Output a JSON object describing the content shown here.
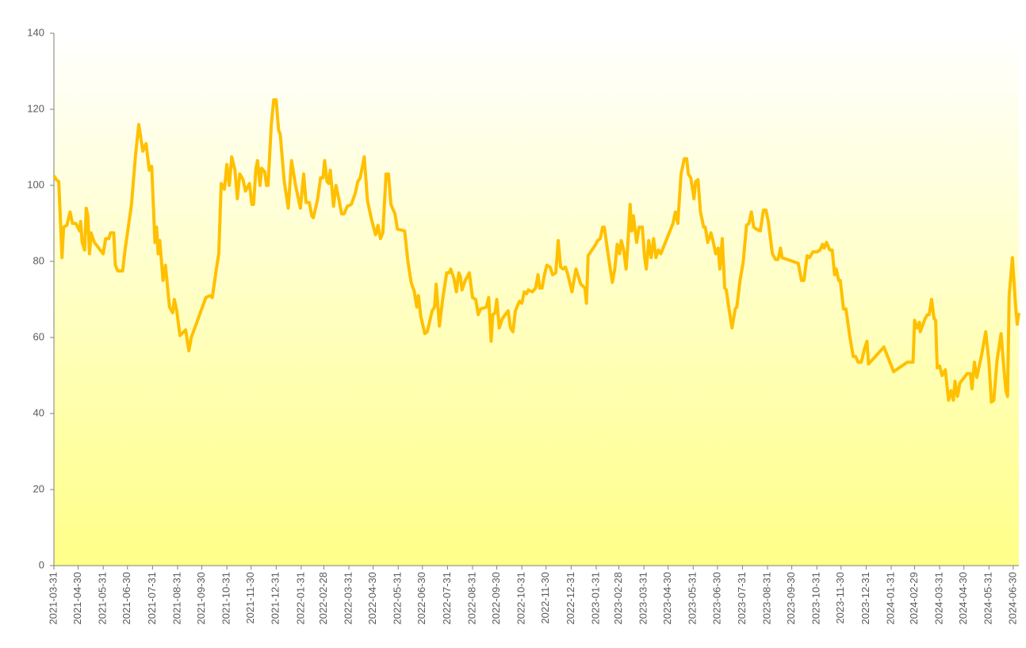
{
  "chart_data": {
    "type": "line",
    "x": [
      "2021-03-31",
      "2021-04-03",
      "2021-04-06",
      "2021-04-10",
      "2021-04-12",
      "2021-04-16",
      "2021-04-20",
      "2021-04-23",
      "2021-04-27",
      "2021-05-02",
      "2021-05-03",
      "2021-05-05",
      "2021-05-08",
      "2021-05-10",
      "2021-05-12",
      "2021-05-14",
      "2021-05-16",
      "2021-05-20",
      "2021-05-31",
      "2021-06-03",
      "2021-06-07",
      "2021-06-09",
      "2021-06-13",
      "2021-06-15",
      "2021-06-18",
      "2021-06-24",
      "2021-06-27",
      "2021-07-05",
      "2021-07-10",
      "2021-07-14",
      "2021-07-19",
      "2021-07-23",
      "2021-07-27",
      "2021-07-30",
      "2021-08-03",
      "2021-08-05",
      "2021-08-07",
      "2021-08-09",
      "2021-08-13",
      "2021-08-16",
      "2021-08-21",
      "2021-08-25",
      "2021-08-27",
      "2021-08-30",
      "2021-09-03",
      "2021-09-10",
      "2021-09-14",
      "2021-09-17",
      "2021-10-05",
      "2021-10-10",
      "2021-10-13",
      "2021-10-18",
      "2021-10-21",
      "2021-10-24",
      "2021-10-28",
      "2021-10-31",
      "2021-11-03",
      "2021-11-06",
      "2021-11-10",
      "2021-11-13",
      "2021-11-16",
      "2021-11-20",
      "2021-11-23",
      "2021-11-28",
      "2021-12-01",
      "2021-12-03",
      "2021-12-06",
      "2021-12-08",
      "2021-12-11",
      "2021-12-13",
      "2021-12-17",
      "2021-12-19",
      "2021-12-21",
      "2021-12-25",
      "2021-12-28",
      "2021-12-31",
      "2022-01-03",
      "2022-01-05",
      "2022-01-10",
      "2022-01-15",
      "2022-01-19",
      "2022-01-24",
      "2022-01-30",
      "2022-02-03",
      "2022-02-06",
      "2022-02-10",
      "2022-02-13",
      "2022-02-15",
      "2022-02-20",
      "2022-02-24",
      "2022-02-27",
      "2022-03-01",
      "2022-03-04",
      "2022-03-06",
      "2022-03-08",
      "2022-03-12",
      "2022-03-15",
      "2022-03-18",
      "2022-03-22",
      "2022-03-25",
      "2022-03-29",
      "2022-04-03",
      "2022-04-08",
      "2022-04-11",
      "2022-04-14",
      "2022-04-19",
      "2022-04-23",
      "2022-04-28",
      "2022-05-03",
      "2022-05-06",
      "2022-05-09",
      "2022-05-12",
      "2022-05-16",
      "2022-05-19",
      "2022-05-22",
      "2022-05-27",
      "2022-05-30",
      "2022-06-08",
      "2022-06-12",
      "2022-06-16",
      "2022-06-20",
      "2022-06-23",
      "2022-06-25",
      "2022-06-28",
      "2022-07-03",
      "2022-07-06",
      "2022-07-12",
      "2022-07-15",
      "2022-07-17",
      "2022-07-21",
      "2022-07-25",
      "2022-07-30",
      "2022-08-02",
      "2022-08-04",
      "2022-08-08",
      "2022-08-11",
      "2022-08-14",
      "2022-08-16",
      "2022-08-18",
      "2022-08-22",
      "2022-08-27",
      "2022-08-31",
      "2022-09-04",
      "2022-09-07",
      "2022-09-10",
      "2022-09-17",
      "2022-09-20",
      "2022-09-23",
      "2022-09-25",
      "2022-09-28",
      "2022-09-30",
      "2022-10-03",
      "2022-10-07",
      "2022-10-14",
      "2022-10-17",
      "2022-10-20",
      "2022-10-23",
      "2022-10-28",
      "2022-10-31",
      "2022-11-03",
      "2022-11-06",
      "2022-11-08",
      "2022-11-13",
      "2022-11-17",
      "2022-11-20",
      "2022-11-22",
      "2022-11-25",
      "2022-11-28",
      "2022-12-01",
      "2022-12-05",
      "2022-12-08",
      "2022-12-12",
      "2022-12-15",
      "2022-12-18",
      "2022-12-21",
      "2022-12-24",
      "2022-12-27",
      "2023-01-01",
      "2023-01-06",
      "2023-01-12",
      "2023-01-17",
      "2023-01-19",
      "2023-01-21",
      "2023-01-29",
      "2023-02-02",
      "2023-02-05",
      "2023-02-08",
      "2023-02-10",
      "2023-02-16",
      "2023-02-20",
      "2023-02-23",
      "2023-02-26",
      "2023-03-01",
      "2023-03-03",
      "2023-03-06",
      "2023-03-09",
      "2023-03-11",
      "2023-03-14",
      "2023-03-16",
      "2023-03-18",
      "2023-03-22",
      "2023-03-25",
      "2023-03-29",
      "2023-04-01",
      "2023-04-03",
      "2023-04-06",
      "2023-04-09",
      "2023-04-12",
      "2023-04-15",
      "2023-04-18",
      "2023-04-21",
      "2023-05-06",
      "2023-05-09",
      "2023-05-12",
      "2023-05-16",
      "2023-05-20",
      "2023-05-23",
      "2023-05-25",
      "2023-05-28",
      "2023-06-01",
      "2023-06-03",
      "2023-06-06",
      "2023-06-09",
      "2023-06-13",
      "2023-06-15",
      "2023-06-18",
      "2023-06-22",
      "2023-06-25",
      "2023-06-28",
      "2023-07-01",
      "2023-07-03",
      "2023-07-06",
      "2023-07-09",
      "2023-07-11",
      "2023-07-14",
      "2023-07-18",
      "2023-07-22",
      "2023-07-24",
      "2023-07-28",
      "2023-08-01",
      "2023-08-05",
      "2023-08-08",
      "2023-08-11",
      "2023-08-14",
      "2023-08-17",
      "2023-08-22",
      "2023-08-26",
      "2023-08-29",
      "2023-09-01",
      "2023-09-06",
      "2023-09-10",
      "2023-09-13",
      "2023-09-16",
      "2023-09-18",
      "2023-10-08",
      "2023-10-12",
      "2023-10-15",
      "2023-10-19",
      "2023-10-22",
      "2023-10-26",
      "2023-10-31",
      "2023-11-04",
      "2023-11-07",
      "2023-11-09",
      "2023-11-12",
      "2023-11-16",
      "2023-11-19",
      "2023-11-22",
      "2023-11-24",
      "2023-11-27",
      "2023-11-29",
      "2023-12-03",
      "2023-12-06",
      "2023-12-11",
      "2023-12-15",
      "2023-12-18",
      "2023-12-21",
      "2023-12-25",
      "2023-12-29",
      "2024-01-01",
      "2024-01-03",
      "2024-01-22",
      "2024-02-03",
      "2024-02-20",
      "2024-02-27",
      "2024-02-29",
      "2024-03-03",
      "2024-03-06",
      "2024-03-07",
      "2024-03-13",
      "2024-03-16",
      "2024-03-18",
      "2024-03-21",
      "2024-03-24",
      "2024-03-26",
      "2024-03-28",
      "2024-03-31",
      "2024-04-03",
      "2024-04-07",
      "2024-04-11",
      "2024-04-14",
      "2024-04-17",
      "2024-04-19",
      "2024-04-22",
      "2024-04-25",
      "2024-05-04",
      "2024-05-08",
      "2024-05-10",
      "2024-05-13",
      "2024-05-16",
      "2024-05-22",
      "2024-05-27",
      "2024-05-31",
      "2024-06-03",
      "2024-06-06",
      "2024-06-10",
      "2024-06-15",
      "2024-06-18",
      "2024-06-21",
      "2024-06-23",
      "2024-06-25",
      "2024-06-29",
      "2024-07-03",
      "2024-07-05",
      "2024-07-07"
    ],
    "series": [
      {
        "color": "#ffc000",
        "values": [
          102.5,
          101.5,
          101,
          81,
          89,
          89.5,
          93,
          90,
          90,
          88,
          90.5,
          85,
          83,
          94,
          92,
          82,
          87.5,
          85,
          82,
          86,
          86,
          87.5,
          87.5,
          79,
          77.5,
          77.5,
          83,
          95,
          108,
          116,
          109,
          111,
          104,
          105,
          85,
          89,
          82,
          85.5,
          75,
          79,
          68,
          66.5,
          70,
          67,
          60.5,
          62,
          56.5,
          60,
          70.5,
          71,
          70.5,
          78,
          82,
          100.5,
          99,
          105.5,
          100,
          107.5,
          104,
          96.5,
          103,
          101.5,
          98.5,
          100.5,
          95,
          95,
          104.5,
          106.5,
          100,
          104.5,
          103.5,
          100,
          100,
          116,
          122.5,
          122.5,
          114.5,
          113.5,
          101,
          94,
          106.5,
          100,
          94,
          103,
          95.5,
          95.5,
          92,
          91.5,
          96,
          102,
          102,
          106.5,
          101,
          100.5,
          104,
          94.5,
          100,
          97,
          92.5,
          92.5,
          94.5,
          95,
          98,
          101,
          102,
          107.5,
          96,
          91,
          87,
          89.5,
          86,
          87.5,
          103,
          103,
          95,
          92.5,
          88.5,
          88,
          80,
          74.5,
          72,
          68,
          71,
          65.5,
          61,
          61.5,
          67,
          68,
          74,
          63,
          70,
          77,
          77,
          78,
          75.5,
          72,
          77,
          76,
          72.5,
          75,
          77,
          70.5,
          70,
          66,
          67.5,
          68,
          70.5,
          59,
          66,
          66.5,
          70,
          62.5,
          65,
          67,
          62.5,
          61.5,
          67,
          69.5,
          69,
          72,
          71.5,
          72.5,
          72,
          73,
          76.5,
          73,
          73,
          76.5,
          79,
          78.5,
          76.5,
          77,
          85.5,
          78.5,
          78,
          78.5,
          76.5,
          72,
          78,
          74,
          73,
          69,
          81.5,
          84,
          85.5,
          86,
          89,
          89,
          80,
          74.5,
          78,
          84.5,
          82,
          85.5,
          83,
          78,
          84,
          95,
          88,
          92,
          85,
          89,
          89,
          81,
          78,
          85.5,
          81,
          86,
          81,
          83,
          82,
          90,
          93,
          90,
          103,
          107,
          107,
          103,
          102,
          96.5,
          101,
          101.5,
          93,
          89,
          89,
          85,
          87.5,
          85,
          82,
          83.5,
          78,
          86,
          73,
          72.5,
          68,
          62.5,
          67.5,
          68,
          75,
          80,
          89.5,
          90,
          93,
          89,
          88.5,
          88,
          93.5,
          93.5,
          90.5,
          82,
          80.5,
          80.5,
          83.5,
          81,
          79.5,
          75,
          75,
          81.5,
          81,
          82.5,
          82.5,
          83,
          84.5,
          83.5,
          85,
          83,
          83,
          76.5,
          78,
          75,
          75,
          67.5,
          67.5,
          60,
          55,
          55,
          53.5,
          53.5,
          57,
          59,
          53,
          57.5,
          51,
          53.5,
          53.5,
          64.5,
          62.5,
          64,
          61.5,
          65,
          66,
          66,
          70,
          65,
          64.5,
          52,
          52.5,
          50,
          51.5,
          43.5,
          46,
          43.5,
          48.5,
          44.5,
          48,
          50.5,
          50.5,
          46.5,
          53.5,
          49.5,
          55.5,
          61.5,
          53.5,
          43,
          43.5,
          54,
          61,
          53,
          46,
          44.5,
          71,
          81,
          68,
          63.5,
          66.5
        ]
      }
    ],
    "xlim": [
      "2021-03-31",
      "2024-07-07"
    ],
    "xticks": [
      "2021-03-31",
      "2021-04-30",
      "2021-05-31",
      "2021-06-30",
      "2021-07-31",
      "2021-08-31",
      "2021-09-30",
      "2021-10-31",
      "2021-11-30",
      "2021-12-31",
      "2022-01-31",
      "2022-02-28",
      "2022-03-31",
      "2022-04-30",
      "2022-05-31",
      "2022-06-30",
      "2022-07-31",
      "2022-08-31",
      "2022-09-30",
      "2022-10-31",
      "2022-11-30",
      "2022-12-31",
      "2023-01-31",
      "2023-02-28",
      "2023-03-31",
      "2023-04-30",
      "2023-05-31",
      "2023-06-30",
      "2023-07-31",
      "2023-08-31",
      "2023-09-30",
      "2023-10-31",
      "2023-11-30",
      "2023-12-31",
      "2024-01-31",
      "2024-02-29",
      "2024-03-31",
      "2024-04-30",
      "2024-05-31",
      "2024-06-30"
    ],
    "ylim": [
      0,
      140
    ],
    "yticks": [
      0,
      20,
      40,
      60,
      80,
      100,
      120,
      140
    ],
    "grid": false
  }
}
